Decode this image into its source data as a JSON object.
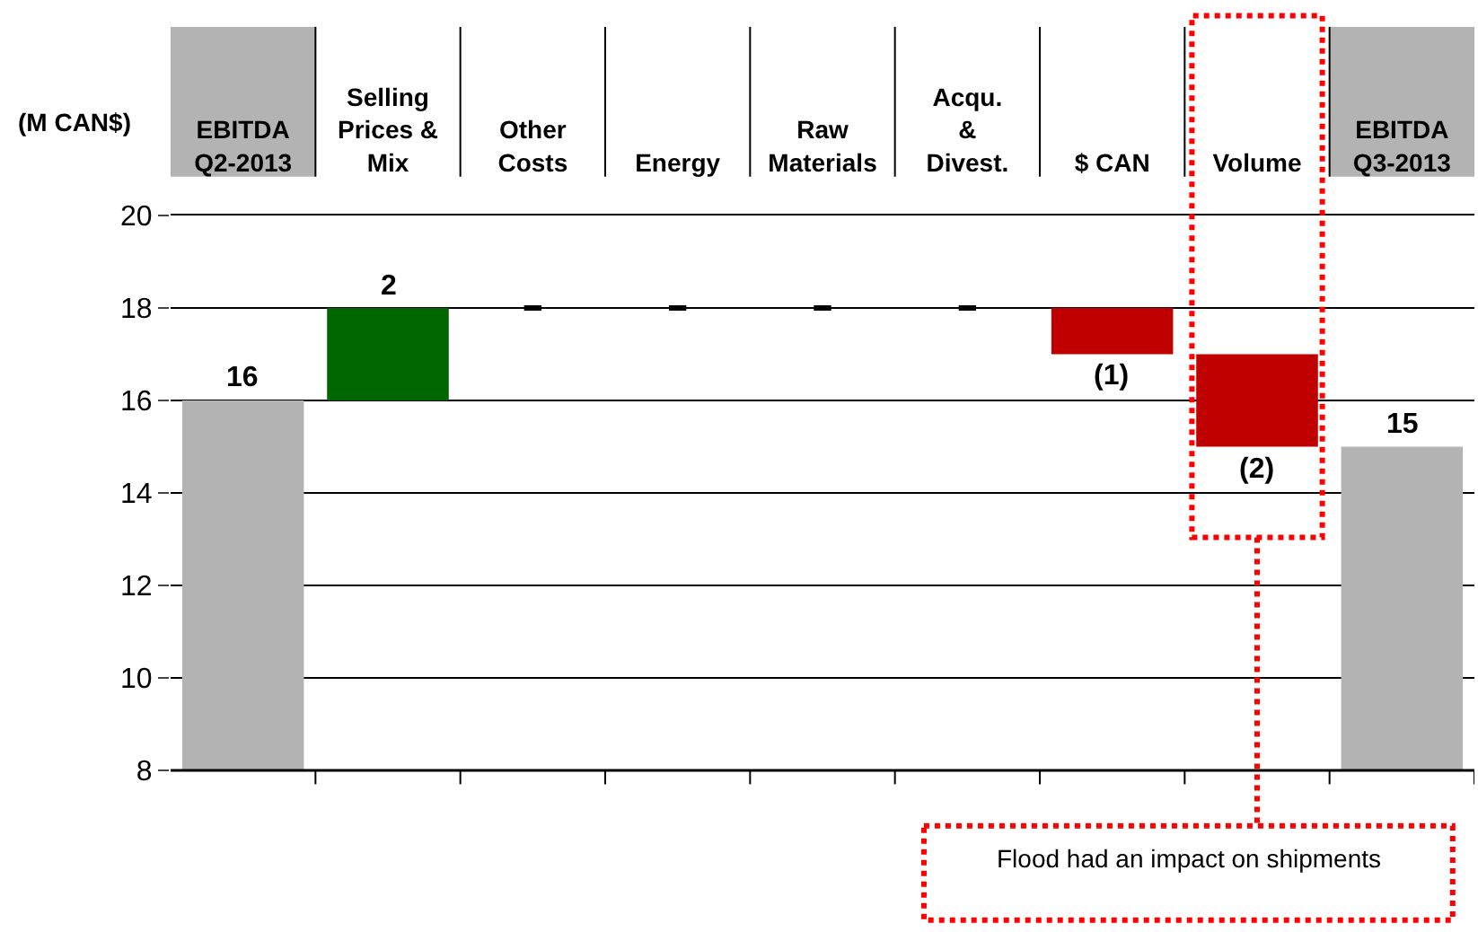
{
  "chart_data": {
    "type": "bar",
    "ylabel": "(M CAN$)",
    "categories": [
      "EBITDA\nQ2-2013",
      "Selling\nPrices &\nMix",
      "Other\nCosts",
      "Energy",
      "Raw\nMaterials",
      "Acqu.\n&\nDivest.",
      "$ CAN",
      "Volume",
      "EBITDA\nQ3-2013"
    ],
    "values": [
      16,
      2,
      0,
      0,
      0,
      0,
      -1,
      -2,
      15
    ],
    "base": [
      0,
      16,
      18,
      18,
      18,
      18,
      18,
      17,
      0
    ],
    "colors": [
      "#b3b3b3",
      "#006600",
      "#000000",
      "#000000",
      "#000000",
      "#000000",
      "#c00000",
      "#c00000",
      "#b3b3b3"
    ],
    "value_labels": [
      "16",
      "2",
      null,
      null,
      null,
      null,
      "(1)",
      "(2)",
      "15"
    ],
    "ylim": [
      8,
      20
    ],
    "yticks": [
      8,
      10,
      12,
      14,
      16,
      18,
      20
    ],
    "grid": "y",
    "legend": false,
    "annotations": [
      "Flood had an impact on shipments"
    ]
  }
}
